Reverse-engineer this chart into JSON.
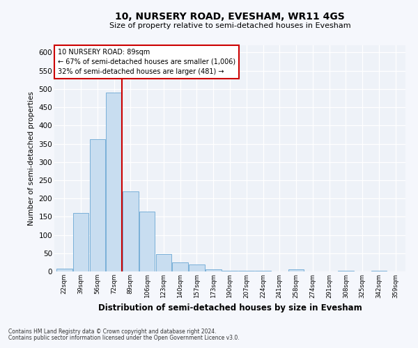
{
  "title": "10, NURSERY ROAD, EVESHAM, WR11 4GS",
  "subtitle": "Size of property relative to semi-detached houses in Evesham",
  "xlabel": "Distribution of semi-detached houses by size in Evesham",
  "ylabel": "Number of semi-detached properties",
  "bar_color": "#c8ddf0",
  "bar_edge_color": "#7ab0d8",
  "background_color": "#eef2f8",
  "grid_color": "#ffffff",
  "categories": [
    "22sqm",
    "39sqm",
    "56sqm",
    "72sqm",
    "89sqm",
    "106sqm",
    "123sqm",
    "140sqm",
    "157sqm",
    "173sqm",
    "190sqm",
    "207sqm",
    "224sqm",
    "241sqm",
    "258sqm",
    "274sqm",
    "291sqm",
    "308sqm",
    "325sqm",
    "342sqm",
    "359sqm"
  ],
  "values": [
    8,
    160,
    363,
    490,
    219,
    165,
    47,
    24,
    20,
    6,
    1,
    1,
    1,
    0,
    5,
    0,
    0,
    1,
    0,
    1,
    0
  ],
  "ylim": [
    0,
    620
  ],
  "yticks": [
    0,
    50,
    100,
    150,
    200,
    250,
    300,
    350,
    400,
    450,
    500,
    550,
    600
  ],
  "property_bar_index": 4,
  "property_line_color": "#cc0000",
  "annotation_text_line1": "10 NURSERY ROAD: 89sqm",
  "annotation_text_line2": "← 67% of semi-detached houses are smaller (1,006)",
  "annotation_text_line3": "32% of semi-detached houses are larger (481) →",
  "annotation_box_color": "#cc0000",
  "footnote1": "Contains HM Land Registry data © Crown copyright and database right 2024.",
  "footnote2": "Contains public sector information licensed under the Open Government Licence v3.0."
}
